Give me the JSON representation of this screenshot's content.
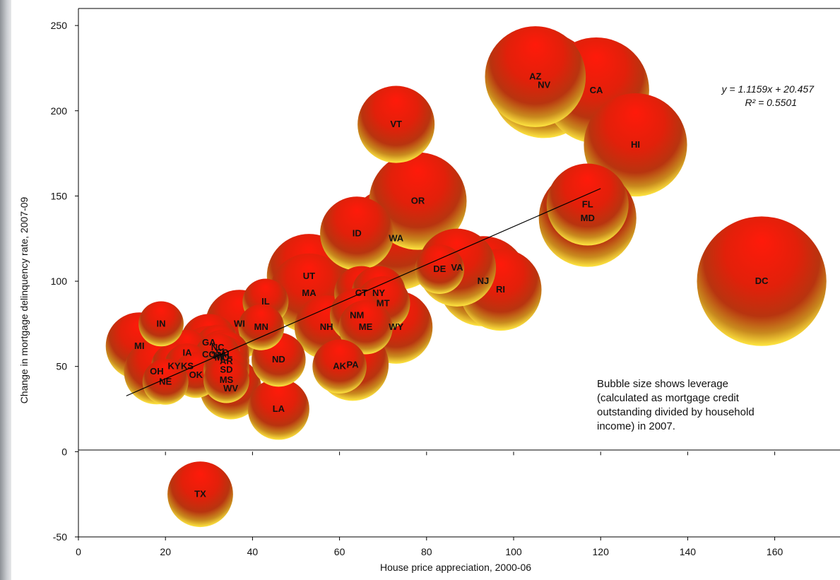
{
  "chart_data": {
    "type": "scatter",
    "title": "",
    "xlabel": "House price appreciation, 2000-06",
    "ylabel": "Change in mortgage delinquency rate, 2007-09",
    "xlim": [
      0,
      175
    ],
    "ylim": [
      -50,
      260
    ],
    "x_ticks": [
      "0",
      "20",
      "40",
      "60",
      "80",
      "100",
      "120",
      "140",
      "160"
    ],
    "y_ticks": [
      "-50",
      "0",
      "50",
      "100",
      "150",
      "200",
      "250"
    ],
    "bubble_colors": {
      "top": "#ff1a0a",
      "middle": "#c8280c",
      "bottom": "#ffe640"
    },
    "trendline": {
      "equation": "y = 1.1159x  + 20.457",
      "r2": "R² = 0.5501",
      "x_range": [
        11,
        120
      ]
    },
    "note_lines": [
      "Bubble size shows leverage",
      "(calculated as mortgage credit",
      "outstanding divided by household",
      "income) in 2007."
    ],
    "points": [
      {
        "label": "AZ",
        "x": 105,
        "y": 220,
        "size": 1.23
      },
      {
        "label": "NV",
        "x": 107,
        "y": 215,
        "size": 1.29
      },
      {
        "label": "CA",
        "x": 119,
        "y": 212,
        "size": 1.29
      },
      {
        "label": "VT",
        "x": 73,
        "y": 192,
        "size": 0.94
      },
      {
        "label": "HI",
        "x": 128,
        "y": 180,
        "size": 1.26
      },
      {
        "label": "FL",
        "x": 117,
        "y": 145,
        "size": 1.0
      },
      {
        "label": "MD",
        "x": 117,
        "y": 137,
        "size": 1.19
      },
      {
        "label": "OR",
        "x": 78,
        "y": 147,
        "size": 1.19
      },
      {
        "label": "ID",
        "x": 64,
        "y": 128,
        "size": 0.9
      },
      {
        "label": "WA",
        "x": 73,
        "y": 125,
        "size": 1.26
      },
      {
        "label": "DC",
        "x": 157,
        "y": 100,
        "size": 1.58
      },
      {
        "label": "DE",
        "x": 83,
        "y": 107,
        "size": 0.6
      },
      {
        "label": "VA",
        "x": 87,
        "y": 108,
        "size": 0.95
      },
      {
        "label": "NJ",
        "x": 93,
        "y": 100,
        "size": 1.1
      },
      {
        "label": "RI",
        "x": 97,
        "y": 95,
        "size": 1.0
      },
      {
        "label": "UT",
        "x": 53,
        "y": 103,
        "size": 1.03
      },
      {
        "label": "MA",
        "x": 53,
        "y": 93,
        "size": 0.97
      },
      {
        "label": "CT",
        "x": 65,
        "y": 93,
        "size": 0.66
      },
      {
        "label": "NY",
        "x": 69,
        "y": 93,
        "size": 0.66
      },
      {
        "label": "MT",
        "x": 70,
        "y": 87,
        "size": 0.66
      },
      {
        "label": "NM",
        "x": 64,
        "y": 80,
        "size": 0.66
      },
      {
        "label": "ME",
        "x": 66,
        "y": 73,
        "size": 0.66
      },
      {
        "label": "WY",
        "x": 73,
        "y": 73,
        "size": 0.89
      },
      {
        "label": "NH",
        "x": 57,
        "y": 73,
        "size": 0.78
      },
      {
        "label": "IL",
        "x": 43,
        "y": 88,
        "size": 0.56
      },
      {
        "label": "MN",
        "x": 42,
        "y": 73,
        "size": 0.56
      },
      {
        "label": "WI",
        "x": 37,
        "y": 75,
        "size": 0.83
      },
      {
        "label": "IN",
        "x": 19,
        "y": 75,
        "size": 0.55
      },
      {
        "label": "MI",
        "x": 14,
        "y": 62,
        "size": 0.82
      },
      {
        "label": "GA",
        "x": 30,
        "y": 64,
        "size": 0.7
      },
      {
        "label": "NC",
        "x": 32,
        "y": 61,
        "size": 0.56
      },
      {
        "label": "SC",
        "x": 33,
        "y": 58,
        "size": 0.56
      },
      {
        "label": "AL",
        "x": 34,
        "y": 57,
        "size": 0.56
      },
      {
        "label": "MO",
        "x": 33,
        "y": 55,
        "size": 0.56
      },
      {
        "label": "AR",
        "x": 34,
        "y": 53,
        "size": 0.56
      },
      {
        "label": "IA",
        "x": 25,
        "y": 58,
        "size": 0.56
      },
      {
        "label": "CO",
        "x": 30,
        "y": 57,
        "size": 0.7
      },
      {
        "label": "TN",
        "x": 32,
        "y": 56,
        "size": 0.56
      },
      {
        "label": "KY",
        "x": 22,
        "y": 50,
        "size": 0.56
      },
      {
        "label": "KS",
        "x": 25,
        "y": 50,
        "size": 0.56
      },
      {
        "label": "OH",
        "x": 18,
        "y": 47,
        "size": 0.8
      },
      {
        "label": "OK",
        "x": 27,
        "y": 45,
        "size": 0.56
      },
      {
        "label": "NE",
        "x": 20,
        "y": 41,
        "size": 0.56
      },
      {
        "label": "SD",
        "x": 34,
        "y": 48,
        "size": 0.56
      },
      {
        "label": "MS",
        "x": 34,
        "y": 42,
        "size": 0.56
      },
      {
        "label": "WV",
        "x": 35,
        "y": 37,
        "size": 0.75
      },
      {
        "label": "ND",
        "x": 46,
        "y": 54,
        "size": 0.66
      },
      {
        "label": "AK",
        "x": 60,
        "y": 50,
        "size": 0.66
      },
      {
        "label": "PA",
        "x": 63,
        "y": 51,
        "size": 0.88
      },
      {
        "label": "LA",
        "x": 46,
        "y": 25,
        "size": 0.75
      },
      {
        "label": "TX",
        "x": 28,
        "y": -25,
        "size": 0.8
      }
    ]
  }
}
